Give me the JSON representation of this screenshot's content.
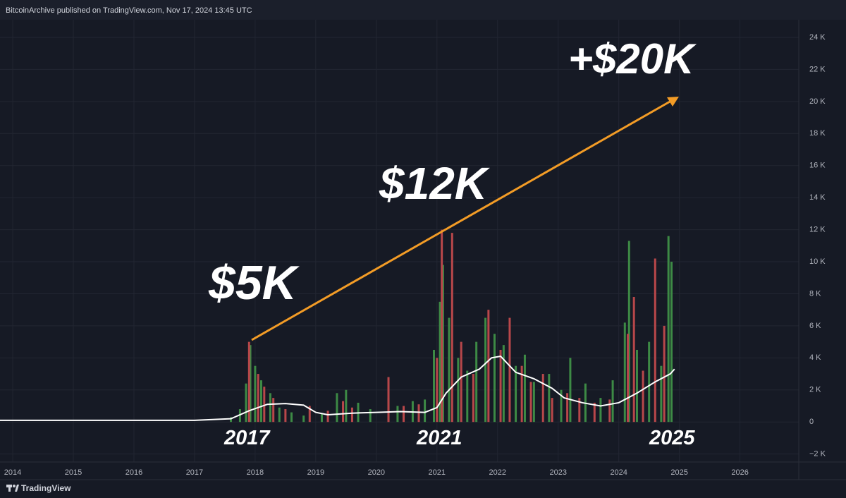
{
  "header": {
    "text": "BitcoinArchive published on TradingView.com, Nov 17, 2024 13:45 UTC"
  },
  "footer": {
    "brand": "TradingView"
  },
  "chart_data": {
    "type": "bar",
    "annotations": [
      "$5K",
      "$12K",
      "+$20K",
      "2017",
      "2021",
      "2025"
    ],
    "xlim": [
      2013.79,
      2026.97
    ],
    "xticks": [
      2014,
      2015,
      2016,
      2017,
      2018,
      2019,
      2020,
      2021,
      2022,
      2023,
      2024,
      2025,
      2026
    ],
    "ylim": [
      -2500,
      25100
    ],
    "yticks": [
      {
        "value": -2000,
        "label": "−2 K"
      },
      0,
      {
        "value": 2000,
        "label": "2 K"
      },
      {
        "value": 4000,
        "label": "4 K"
      },
      {
        "value": 6000,
        "label": "6 K"
      },
      {
        "value": 8000,
        "label": "8 K"
      },
      {
        "value": 10000,
        "label": "10 K"
      },
      {
        "value": 12000,
        "label": "12 K"
      },
      {
        "value": 14000,
        "label": "14 K"
      },
      {
        "value": 16000,
        "label": "16 K"
      },
      {
        "value": 18000,
        "label": "18 K"
      },
      {
        "value": 20000,
        "label": "20 K"
      },
      {
        "value": 22000,
        "label": "22 K"
      },
      {
        "value": 24000,
        "label": "24 K"
      }
    ],
    "grid": true,
    "series": [
      {
        "color": "#3d8a45",
        "x": [
          2017.6,
          2017.75,
          2017.85,
          2017.92,
          2018.0,
          2018.1,
          2018.25,
          2018.4,
          2018.6,
          2018.8,
          2019.1,
          2019.35,
          2019.5,
          2019.7,
          2019.9,
          2020.2,
          2020.35,
          2020.6,
          2020.8,
          2020.95,
          2021.05,
          2021.1,
          2021.2,
          2021.35,
          2021.5,
          2021.65,
          2021.8,
          2021.95,
          2022.1,
          2022.3,
          2022.45,
          2022.6,
          2022.85,
          2023.05,
          2023.2,
          2023.45,
          2023.7,
          2023.9,
          2024.1,
          2024.17,
          2024.3,
          2024.5,
          2024.7,
          2024.82,
          2024.87
        ],
        "values": [
          300,
          800,
          2400,
          4800,
          3500,
          2600,
          1800,
          900,
          600,
          400,
          500,
          1800,
          2000,
          1200,
          800,
          1500,
          1000,
          1300,
          1400,
          4500,
          7500,
          9800,
          6500,
          4000,
          3200,
          5000,
          6500,
          5500,
          4800,
          3500,
          4200,
          2500,
          3000,
          2000,
          4000,
          2400,
          1500,
          2600,
          6200,
          11300,
          4500,
          5000,
          3500,
          11600,
          10000
        ]
      },
      {
        "color": "#b8474a",
        "x": [
          2017.9,
          2018.05,
          2018.15,
          2018.3,
          2018.5,
          2018.9,
          2019.2,
          2019.45,
          2019.6,
          2020.2,
          2020.45,
          2020.7,
          2021.0,
          2021.08,
          2021.25,
          2021.4,
          2021.6,
          2021.85,
          2022.05,
          2022.2,
          2022.4,
          2022.55,
          2022.75,
          2022.9,
          2023.15,
          2023.35,
          2023.6,
          2023.85,
          2024.15,
          2024.25,
          2024.4,
          2024.6,
          2024.75
        ],
        "values": [
          5000,
          3000,
          2200,
          1500,
          800,
          1000,
          700,
          1300,
          900,
          2800,
          1000,
          1100,
          4000,
          12000,
          11800,
          5000,
          3000,
          7000,
          4500,
          6500,
          3500,
          2500,
          3000,
          1500,
          1800,
          1500,
          1200,
          1400,
          5500,
          7800,
          3200,
          10200,
          6000
        ]
      },
      {
        "type": "line",
        "color": "#ffffff",
        "x": [
          2013.79,
          2017.0,
          2017.6,
          2017.9,
          2018.2,
          2018.5,
          2018.8,
          2019.0,
          2019.2,
          2019.6,
          2020.0,
          2020.4,
          2020.8,
          2021.0,
          2021.15,
          2021.4,
          2021.7,
          2021.9,
          2022.05,
          2022.3,
          2022.6,
          2022.9,
          2023.1,
          2023.4,
          2023.7,
          2024.0,
          2024.3,
          2024.6,
          2024.85,
          2024.92
        ],
        "values": [
          100,
          100,
          200,
          700,
          1100,
          1150,
          1050,
          600,
          450,
          550,
          600,
          650,
          600,
          900,
          1800,
          2800,
          3300,
          4000,
          4100,
          3100,
          2700,
          2100,
          1500,
          1200,
          1000,
          1200,
          1800,
          2500,
          3000,
          3300
        ]
      }
    ]
  }
}
